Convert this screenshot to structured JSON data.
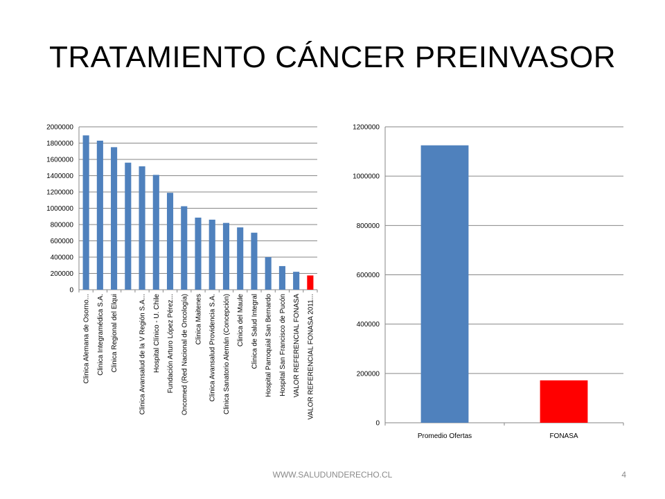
{
  "slide": {
    "title": "TRATAMIENTO CÁNCER PREINVASOR",
    "footer": "WWW.SALUDUNDERECHO.CL",
    "page_number": "4"
  },
  "colors": {
    "bar_default": "#4F81BD",
    "bar_highlight": "#FF0000",
    "grid": "#868686"
  },
  "chart_data": [
    {
      "type": "bar",
      "ylim": [
        0,
        2000000
      ],
      "yticks": [
        0,
        200000,
        400000,
        600000,
        800000,
        1000000,
        1200000,
        1400000,
        1600000,
        1800000,
        2000000
      ],
      "categories": [
        "Clinica Alemana de Osorno...",
        "Clinica Integramédica S.A.",
        "Clinica Regional del Elqui",
        "",
        "Clinica Avansalud de la V Región S.A...",
        "Hospital Clínico - U. Chile",
        "Fundación Arturo López Pérez...",
        "Oncomed (Red Nacional de Oncología)",
        "Clinica Maitenes",
        "Clinica Avansalud Providencia S.A.",
        "Clinica Sanatorio Alemán (Concepción)",
        "Clinica del Maule",
        "Clinica de Salud Integral",
        "Hospital Parroquial San Bernardo",
        "Hospital San Francisco de Pucón",
        "VALOR REFERENCIAL FONASA",
        "VALOR REFERENCIAL FONASA 2011..."
      ],
      "values": [
        1895000,
        1830000,
        1750000,
        1560000,
        1515000,
        1410000,
        1190000,
        1025000,
        885000,
        860000,
        820000,
        765000,
        700000,
        400000,
        290000,
        220000,
        175000
      ],
      "highlight_index": 16
    },
    {
      "type": "bar",
      "ylim": [
        0,
        1200000
      ],
      "yticks": [
        0,
        200000,
        400000,
        600000,
        800000,
        1000000,
        1200000
      ],
      "categories": [
        "Promedio Ofertas",
        "FONASA"
      ],
      "values": [
        1125000,
        172000
      ],
      "highlight_index": 1
    }
  ]
}
